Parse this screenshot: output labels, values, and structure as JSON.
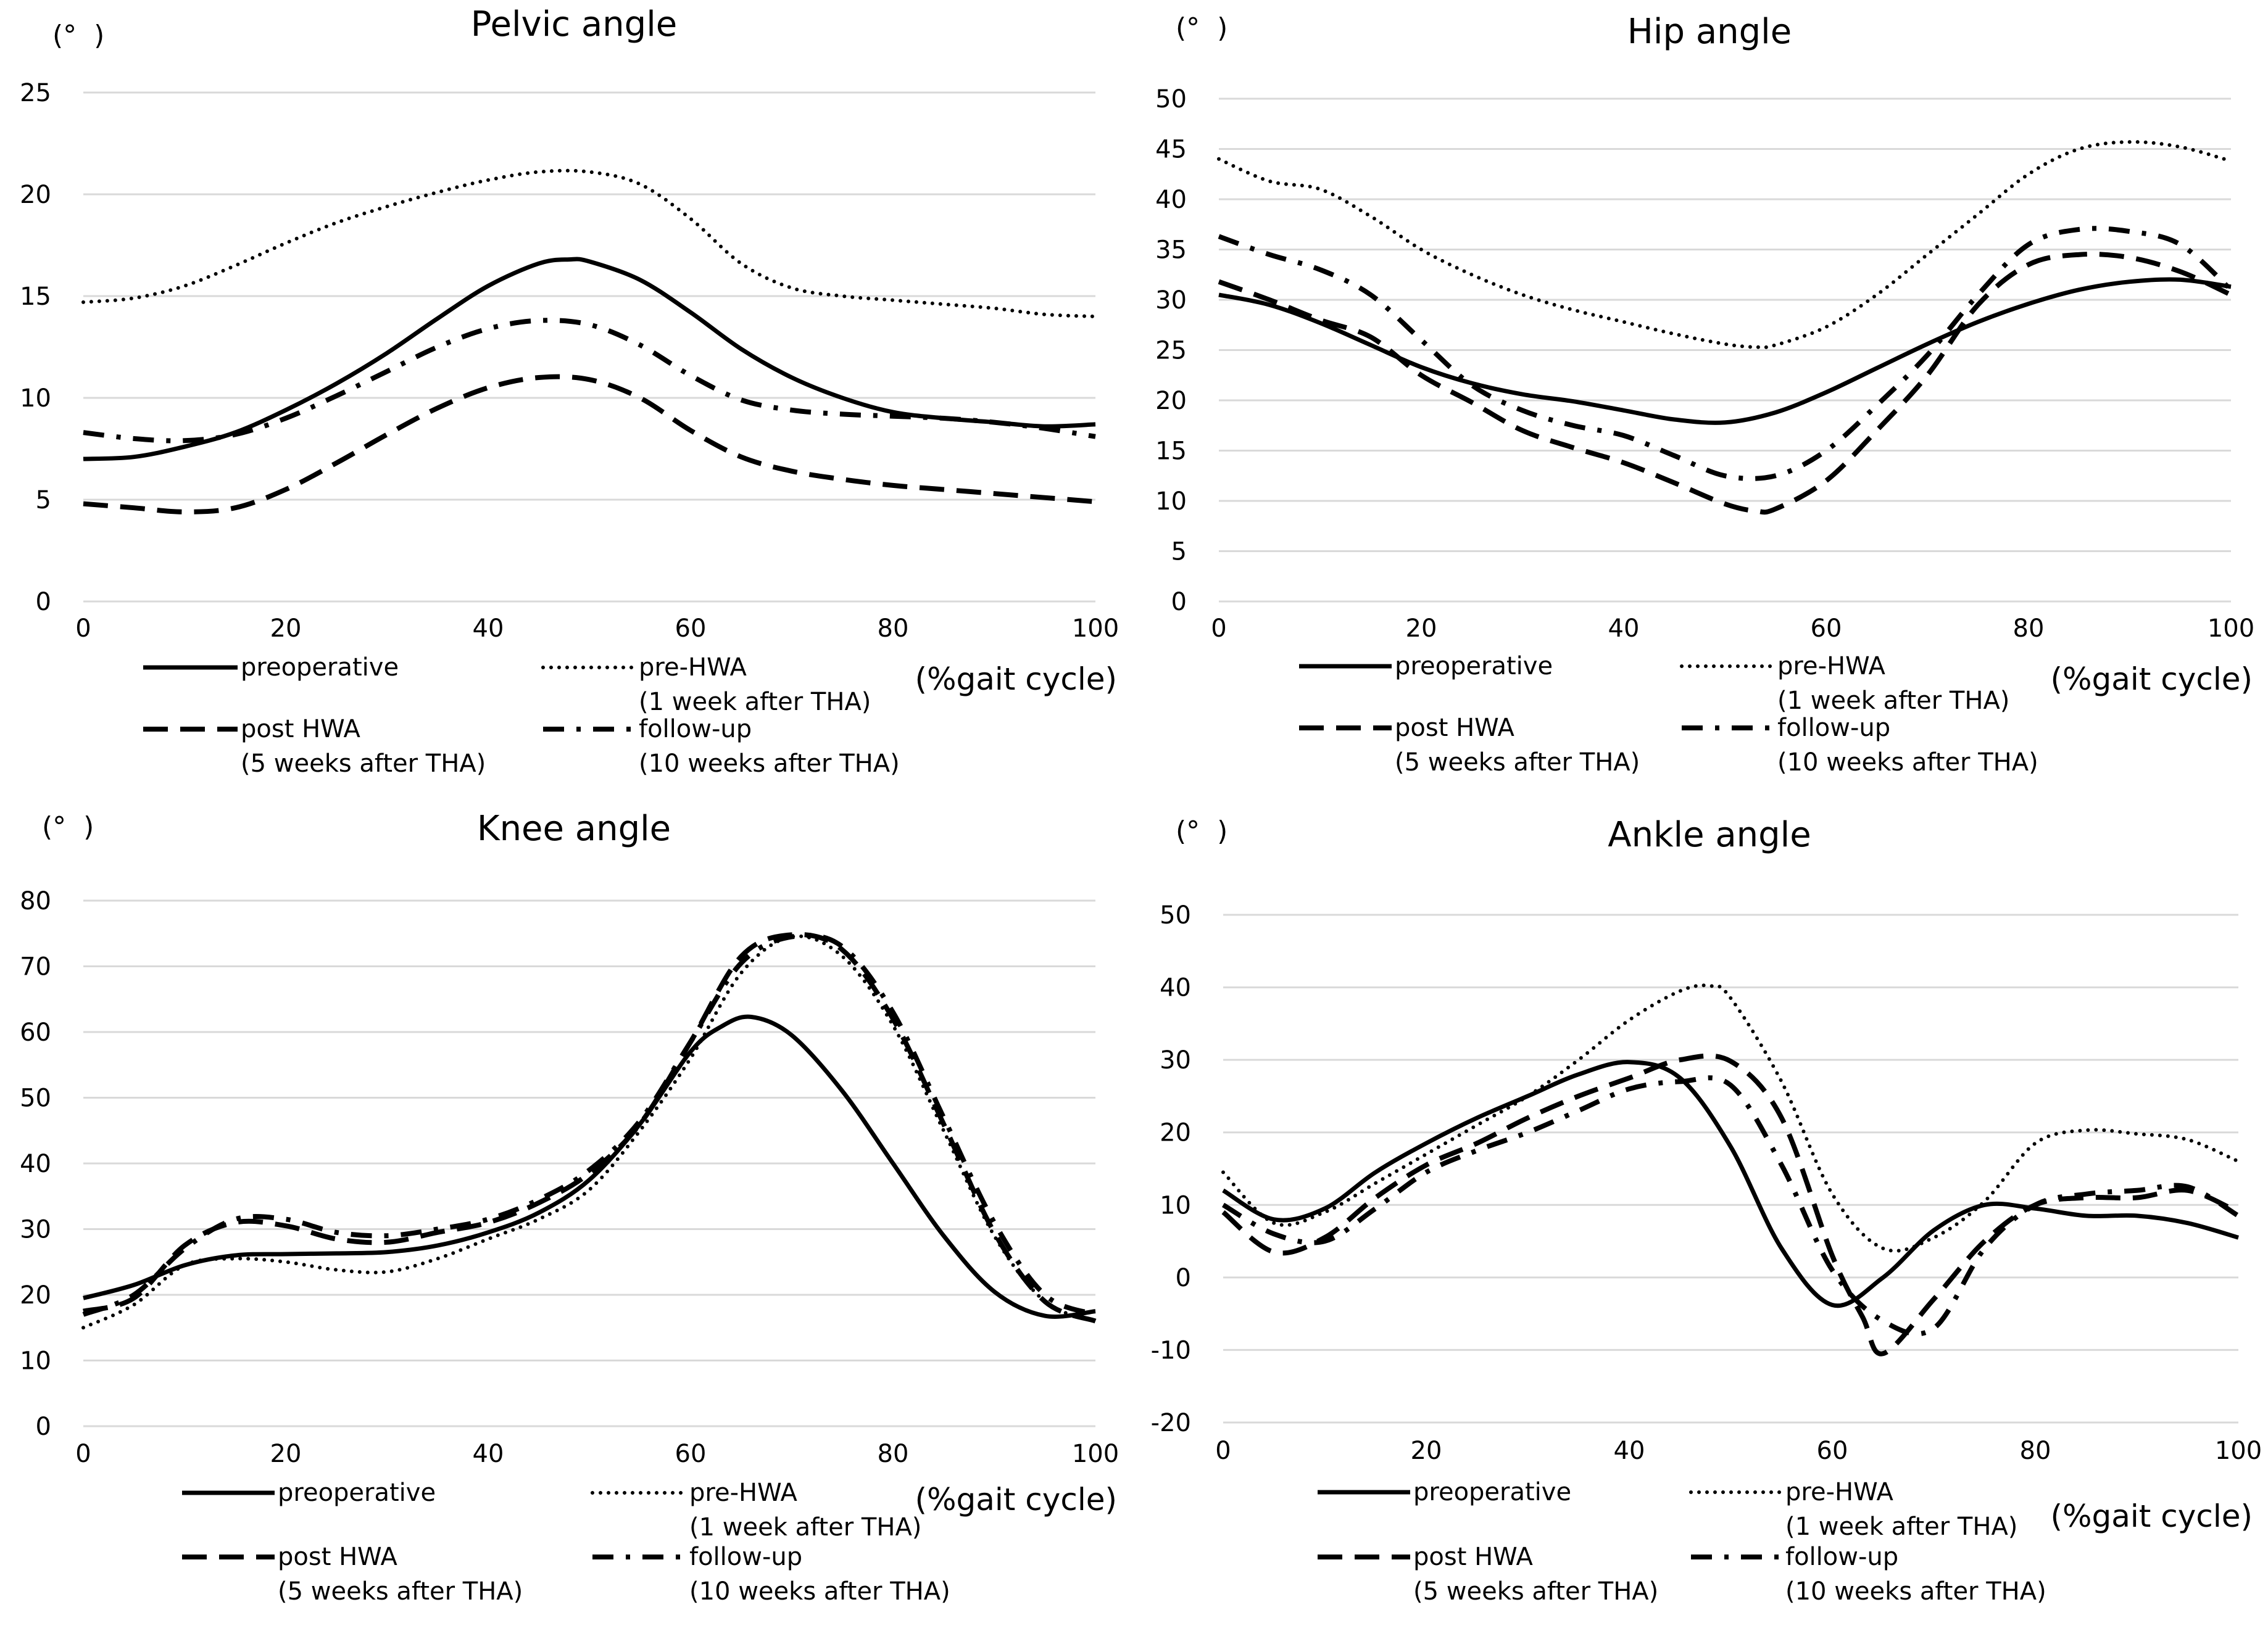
{
  "chart_data": [
    {
      "type": "line",
      "title": "Pelvic angle",
      "ylabel": "(°  )",
      "xlabel": "(%gait cycle)",
      "xlim": [
        0,
        100
      ],
      "ylim": [
        0,
        25
      ],
      "xticks": [
        "0",
        "20",
        "40",
        "60",
        "80",
        "100"
      ],
      "yticks": [
        "0",
        "5",
        "10",
        "15",
        "20",
        "25"
      ],
      "series": [
        {
          "name": "preoperative",
          "style": "solid",
          "x": [
            0,
            5,
            10,
            15,
            20,
            25,
            30,
            35,
            40,
            45,
            48,
            50,
            55,
            60,
            65,
            70,
            75,
            80,
            85,
            90,
            95,
            100
          ],
          "y": [
            7,
            7.1,
            7.6,
            8.3,
            9.4,
            10.7,
            12.2,
            13.9,
            15.5,
            16.6,
            16.8,
            16.7,
            15.8,
            14.2,
            12.4,
            11,
            10,
            9.3,
            9.0,
            8.8,
            8.6,
            8.7
          ]
        },
        {
          "name": "pre-HWA",
          "sub": "(1 week after THA)",
          "style": "dotted",
          "x": [
            0,
            5,
            10,
            15,
            20,
            25,
            30,
            35,
            40,
            45,
            50,
            55,
            60,
            65,
            70,
            75,
            80,
            85,
            90,
            95,
            100
          ],
          "y": [
            14.7,
            14.9,
            15.5,
            16.5,
            17.6,
            18.6,
            19.4,
            20.1,
            20.7,
            21.1,
            21.1,
            20.5,
            18.8,
            16.6,
            15.4,
            15,
            14.8,
            14.6,
            14.4,
            14.1,
            14.0
          ]
        },
        {
          "name": "post HWA",
          "sub": "(5 weeks after THA)",
          "style": "dashed",
          "x": [
            0,
            5,
            10,
            15,
            20,
            25,
            30,
            35,
            40,
            45,
            50,
            55,
            60,
            65,
            70,
            75,
            80,
            85,
            90,
            95,
            100
          ],
          "y": [
            4.8,
            4.6,
            4.4,
            4.6,
            5.5,
            6.8,
            8.2,
            9.5,
            10.5,
            11.0,
            10.9,
            10.0,
            8.4,
            7.1,
            6.4,
            6.0,
            5.7,
            5.5,
            5.3,
            5.1,
            4.9
          ]
        },
        {
          "name": "follow-up",
          "sub": "(10 weeks after THA)",
          "style": "dashdot",
          "x": [
            0,
            5,
            10,
            15,
            20,
            25,
            30,
            35,
            40,
            45,
            50,
            55,
            60,
            65,
            70,
            75,
            80,
            85,
            90,
            95,
            100
          ],
          "y": [
            8.3,
            8.0,
            7.9,
            8.2,
            9.0,
            10.1,
            11.3,
            12.5,
            13.4,
            13.8,
            13.6,
            12.6,
            11.1,
            9.9,
            9.4,
            9.2,
            9.1,
            9.0,
            8.8,
            8.5,
            8.1
          ]
        }
      ]
    },
    {
      "type": "line",
      "title": "Hip angle",
      "ylabel": "(°  )",
      "xlabel": "(%gait cycle)",
      "xlim": [
        0,
        100
      ],
      "ylim": [
        0,
        50
      ],
      "xticks": [
        "0",
        "20",
        "40",
        "60",
        "80",
        "100"
      ],
      "yticks": [
        "0",
        "5",
        "10",
        "15",
        "20",
        "25",
        "30",
        "35",
        "40",
        "45",
        "50"
      ],
      "series": [
        {
          "name": "preoperative",
          "style": "solid",
          "x": [
            0,
            5,
            10,
            15,
            20,
            25,
            30,
            35,
            40,
            45,
            50,
            55,
            60,
            65,
            70,
            75,
            80,
            85,
            90,
            95,
            100
          ],
          "y": [
            30.5,
            29.5,
            27.7,
            25.5,
            23.3,
            21.7,
            20.6,
            19.9,
            19.0,
            18.1,
            17.8,
            18.8,
            20.8,
            23.2,
            25.6,
            27.8,
            29.6,
            31.0,
            31.8,
            32.0,
            31.3
          ]
        },
        {
          "name": "pre-HWA",
          "sub": "(1 week after THA)",
          "style": "dotted",
          "x": [
            0,
            5,
            10,
            15,
            20,
            25,
            30,
            35,
            40,
            45,
            50,
            53,
            55,
            60,
            65,
            70,
            75,
            80,
            85,
            90,
            95,
            100
          ],
          "y": [
            44,
            41.8,
            41.0,
            38.3,
            35.0,
            32.5,
            30.5,
            29.0,
            27.8,
            26.6,
            25.6,
            25.3,
            25.5,
            27.3,
            30.5,
            34.5,
            38.5,
            42.5,
            45.0,
            45.7,
            45.2,
            43.8
          ]
        },
        {
          "name": "post HWA",
          "sub": "(5 weeks after THA)",
          "style": "dashed",
          "x": [
            0,
            5,
            10,
            15,
            20,
            25,
            30,
            35,
            40,
            45,
            50,
            53,
            55,
            60,
            65,
            70,
            75,
            80,
            85,
            90,
            95,
            100
          ],
          "y": [
            31.8,
            30.0,
            28.0,
            26.3,
            22.5,
            19.8,
            17.0,
            15.3,
            13.8,
            11.8,
            9.7,
            9.0,
            9.2,
            12.0,
            17.0,
            22.5,
            29.5,
            33.5,
            34.5,
            34.2,
            32.8,
            30.5
          ]
        },
        {
          "name": "follow-up",
          "sub": "(10 weeks after THA)",
          "style": "dashdot",
          "x": [
            0,
            5,
            10,
            15,
            20,
            25,
            30,
            35,
            40,
            45,
            50,
            55,
            60,
            65,
            70,
            75,
            80,
            85,
            90,
            95,
            100
          ],
          "y": [
            36.3,
            34.5,
            33.0,
            30.5,
            26.0,
            21.5,
            19.0,
            17.5,
            16.5,
            14.5,
            12.5,
            12.5,
            15.0,
            19.5,
            24.5,
            30.5,
            35.5,
            37.0,
            36.8,
            35.5,
            31.0
          ]
        }
      ]
    },
    {
      "type": "line",
      "title": "Knee angle",
      "ylabel": "(°  )",
      "xlabel": "(%gait cycle)",
      "xlim": [
        0,
        100
      ],
      "ylim": [
        0,
        80
      ],
      "xticks": [
        "0",
        "20",
        "40",
        "60",
        "80",
        "100"
      ],
      "yticks": [
        "0",
        "10",
        "20",
        "30",
        "40",
        "50",
        "60",
        "70",
        "80"
      ],
      "series": [
        {
          "name": "preoperative",
          "style": "solid",
          "x": [
            0,
            5,
            10,
            15,
            20,
            25,
            30,
            35,
            40,
            45,
            50,
            55,
            60,
            63,
            66,
            70,
            75,
            80,
            85,
            90,
            95,
            100
          ],
          "y": [
            19.5,
            21.5,
            24.5,
            26,
            26.2,
            26.3,
            26.5,
            27.5,
            29.5,
            32.5,
            37.5,
            46,
            57,
            60.8,
            62.3,
            59.5,
            51,
            40,
            29,
            20.5,
            16.8,
            17.5
          ]
        },
        {
          "name": "pre-HWA",
          "sub": "(1 week after THA)",
          "style": "dotted",
          "x": [
            0,
            5,
            10,
            15,
            20,
            25,
            30,
            35,
            40,
            45,
            50,
            55,
            60,
            65,
            70,
            75,
            80,
            85,
            90,
            95,
            100
          ],
          "y": [
            15,
            18.5,
            24.5,
            25.5,
            25,
            23.8,
            23.5,
            25.5,
            28.5,
            31.5,
            36,
            45,
            56,
            69,
            74.5,
            71.5,
            61,
            45,
            29,
            19,
            16
          ]
        },
        {
          "name": "post HWA",
          "sub": "(5 weeks after THA)",
          "style": "dashed",
          "x": [
            0,
            5,
            10,
            15,
            20,
            25,
            30,
            35,
            40,
            45,
            50,
            55,
            60,
            65,
            70,
            75,
            80,
            85,
            90,
            95,
            100
          ],
          "y": [
            17.5,
            19.5,
            27.5,
            31,
            30.5,
            28.5,
            28,
            29.5,
            31,
            34,
            38.5,
            46,
            58.5,
            71.5,
            74.8,
            72.5,
            62,
            46,
            29.5,
            19,
            16
          ]
        },
        {
          "name": "follow-up",
          "sub": "(10 weeks after THA)",
          "style": "dashdot",
          "x": [
            0,
            5,
            10,
            15,
            20,
            25,
            30,
            35,
            40,
            45,
            50,
            55,
            60,
            65,
            70,
            75,
            80,
            85,
            90,
            95,
            100
          ],
          "y": [
            17,
            20,
            27,
            31.5,
            31.5,
            29.5,
            29,
            30,
            31.5,
            34.5,
            39,
            46.5,
            58.5,
            70.5,
            74.5,
            73,
            63,
            47,
            31,
            20,
            17
          ]
        }
      ]
    },
    {
      "type": "line",
      "title": "Ankle angle",
      "ylabel": "(°  )",
      "xlabel": "(%gait cycle)",
      "xlim": [
        0,
        100
      ],
      "ylim": [
        -20,
        50
      ],
      "xticks": [
        "0",
        "20",
        "40",
        "60",
        "80",
        "100"
      ],
      "yticks": [
        "-20",
        "-10",
        "0",
        "10",
        "20",
        "30",
        "40",
        "50"
      ],
      "series": [
        {
          "name": "preoperative",
          "style": "solid",
          "x": [
            0,
            5,
            10,
            15,
            20,
            25,
            30,
            35,
            40,
            45,
            50,
            55,
            60,
            65,
            70,
            75,
            80,
            85,
            90,
            95,
            100
          ],
          "y": [
            12,
            8,
            9.5,
            14.5,
            18.5,
            22,
            25,
            28,
            29.7,
            27.5,
            18,
            4,
            -3.8,
            0,
            6.5,
            10,
            9.5,
            8.5,
            8.5,
            7.5,
            5.5
          ]
        },
        {
          "name": "pre-HWA",
          "sub": "(1 week after THA)",
          "style": "dotted",
          "x": [
            0,
            5,
            10,
            15,
            20,
            25,
            30,
            35,
            40,
            45,
            48,
            50,
            55,
            60,
            65,
            70,
            75,
            80,
            85,
            90,
            95,
            100
          ],
          "y": [
            14.5,
            7.5,
            9,
            13,
            17,
            21,
            25,
            30,
            35.5,
            39.5,
            40.2,
            38.5,
            27,
            11.5,
            4,
            5.5,
            10.5,
            18.5,
            20.3,
            19.8,
            19,
            16
          ]
        },
        {
          "name": "post HWA",
          "sub": "(5 weeks after THA)",
          "style": "dashed",
          "x": [
            0,
            5,
            10,
            15,
            20,
            25,
            30,
            35,
            40,
            45,
            50,
            55,
            60,
            63,
            65,
            70,
            75,
            80,
            85,
            90,
            95,
            100
          ],
          "y": [
            9,
            3.5,
            5.5,
            11,
            15.5,
            18.5,
            22,
            25,
            27.5,
            30,
            29.8,
            22,
            3,
            -5.5,
            -10.5,
            -3,
            5,
            10,
            11,
            11,
            12,
            9
          ]
        },
        {
          "name": "follow-up",
          "sub": "(10 weeks after THA)",
          "style": "dashdot",
          "x": [
            0,
            5,
            10,
            15,
            20,
            25,
            30,
            35,
            40,
            45,
            50,
            55,
            60,
            65,
            70,
            75,
            80,
            85,
            90,
            95,
            100
          ],
          "y": [
            10,
            6,
            5,
            9.5,
            14.5,
            17.5,
            20,
            23,
            26,
            27,
            26.5,
            15.5,
            1,
            -6,
            -7,
            4,
            10,
            11.5,
            12,
            12.5,
            8.5
          ]
        }
      ]
    }
  ]
}
